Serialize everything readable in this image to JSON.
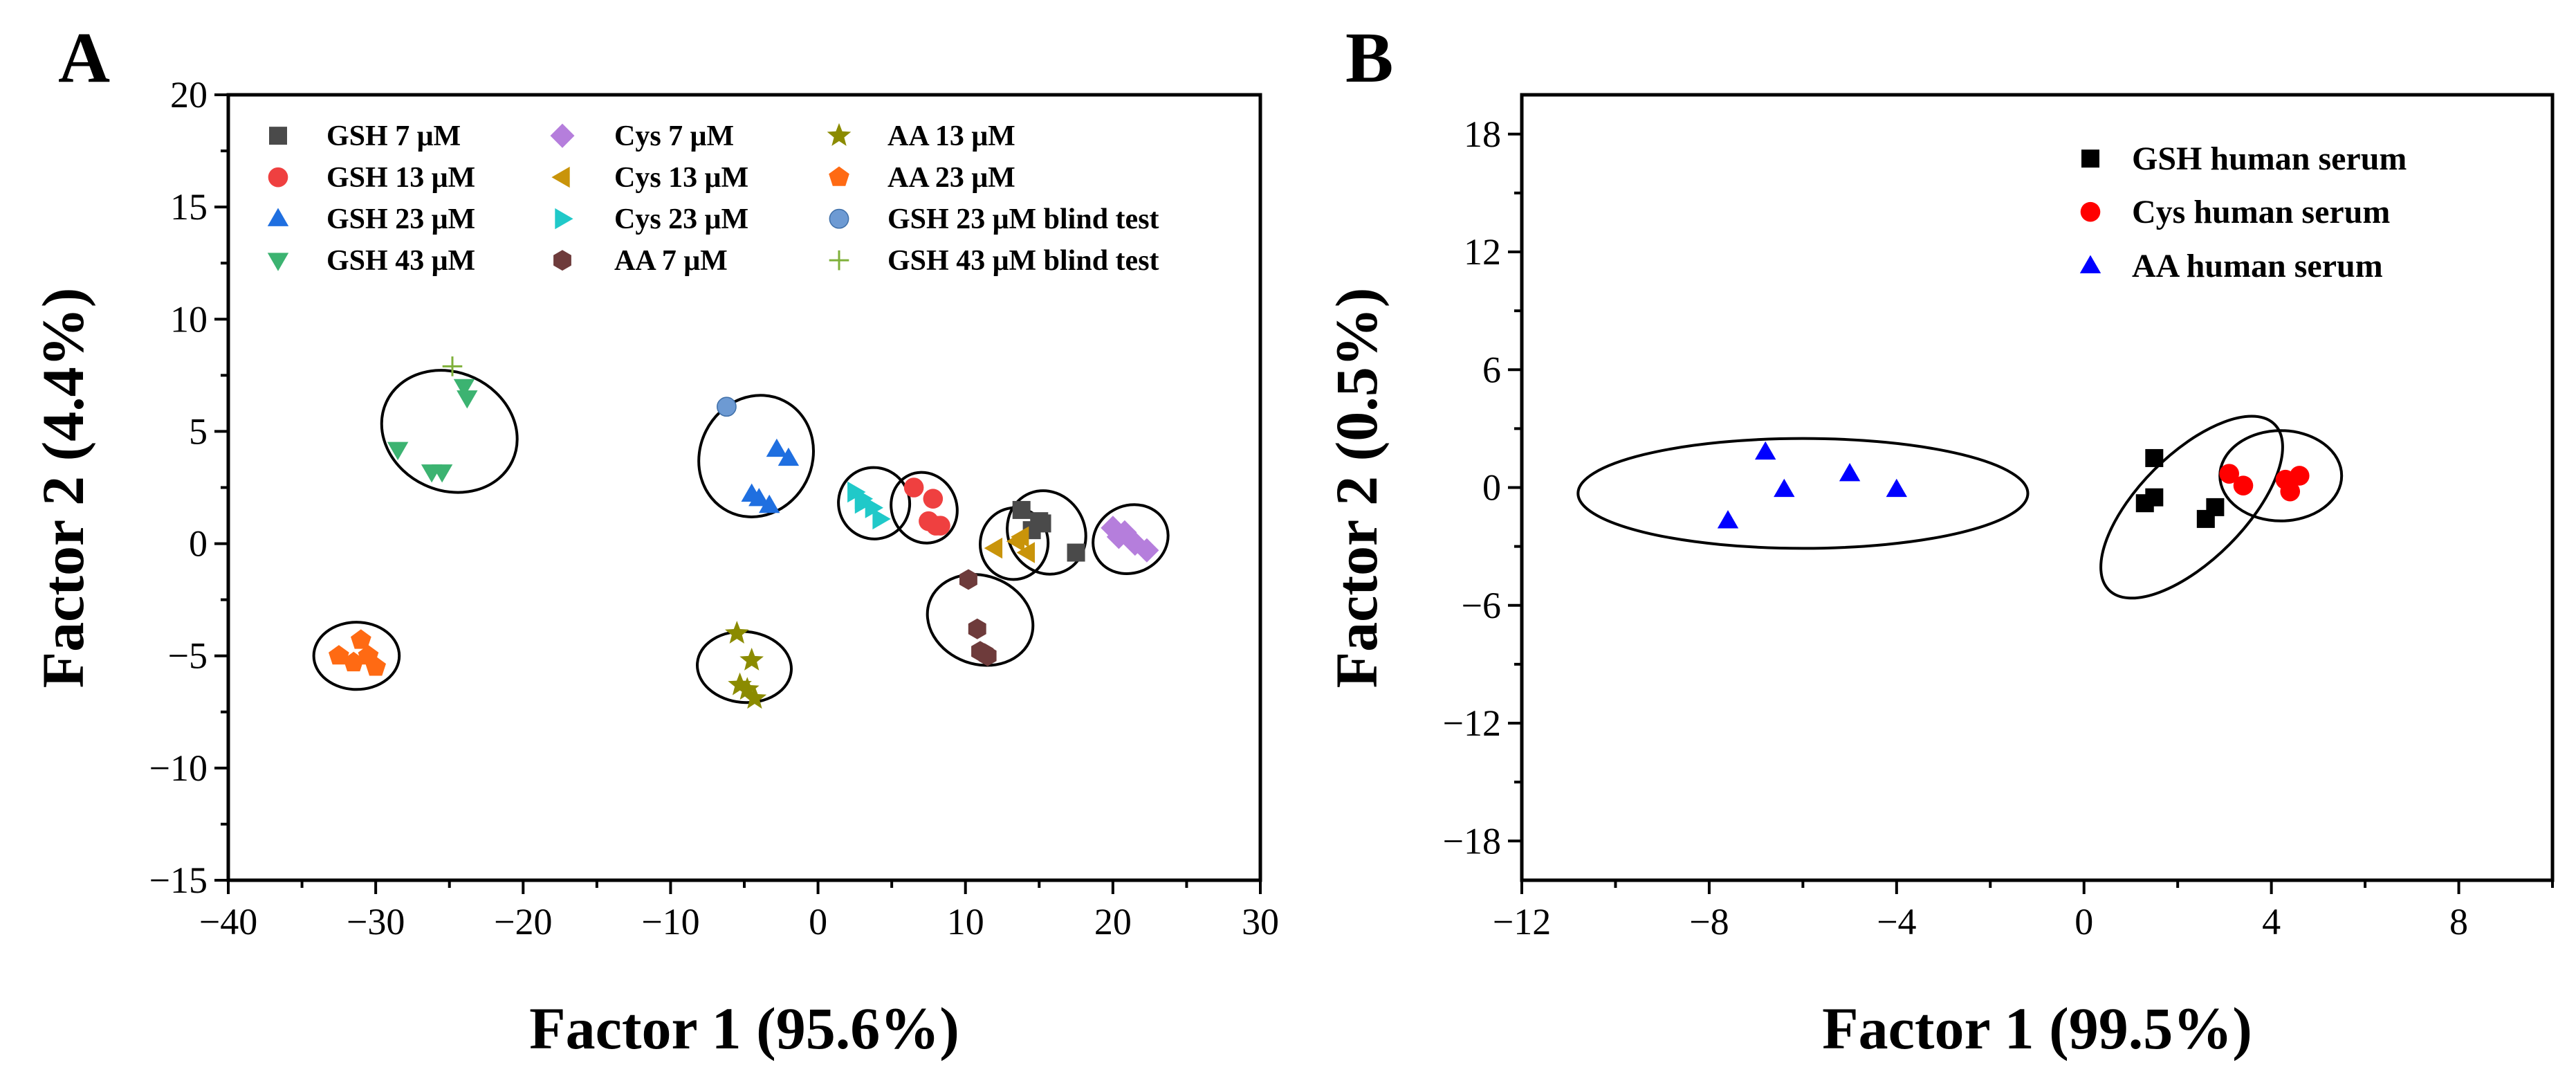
{
  "chart_data": [
    {
      "panel_label": "A",
      "type": "scatter",
      "xlabel": "Factor 1 (95.6%)",
      "ylabel": "Factor 2 (4.4%)",
      "xlim": [
        -40,
        30
      ],
      "ylim": [
        -15,
        20
      ],
      "xticks": [
        -40,
        -30,
        -20,
        -10,
        0,
        10,
        20,
        30
      ],
      "yticks": [
        -15,
        -10,
        -5,
        0,
        5,
        10,
        15,
        20
      ],
      "xtick_labels": [
        "−40",
        "−30",
        "−20",
        "−10",
        "0",
        "10",
        "20",
        "30"
      ],
      "ytick_labels": [
        "−15",
        "−10",
        "−5",
        "0",
        "5",
        "10",
        "15",
        "20"
      ],
      "grid": false,
      "legend_position": "top",
      "series": [
        {
          "name": "GSH 7 μM",
          "marker": "square",
          "color": "#4a4a4a",
          "points": [
            [
              13.8,
              1.5
            ],
            [
              15.0,
              1.0
            ],
            [
              15.2,
              0.9
            ],
            [
              14.5,
              0.6
            ],
            [
              17.5,
              -0.4
            ]
          ]
        },
        {
          "name": "GSH 13 μM",
          "marker": "circle",
          "color": "#ef4040",
          "points": [
            [
              6.5,
              2.5
            ],
            [
              7.8,
              2.0
            ],
            [
              7.5,
              1.0
            ],
            [
              8.0,
              0.8
            ],
            [
              8.3,
              0.8
            ]
          ]
        },
        {
          "name": "GSH 23 μM",
          "marker": "triangle-up",
          "color": "#1f6fe0",
          "points": [
            [
              -2.8,
              4.2
            ],
            [
              -2.0,
              3.8
            ],
            [
              -4.5,
              2.2
            ],
            [
              -4.0,
              2.0
            ],
            [
              -3.3,
              1.7
            ]
          ]
        },
        {
          "name": "GSH 43 μM",
          "marker": "triangle-down",
          "color": "#3cb371",
          "points": [
            [
              -24.0,
              7.0
            ],
            [
              -23.8,
              6.5
            ],
            [
              -28.5,
              4.2
            ],
            [
              -26.2,
              3.2
            ],
            [
              -25.5,
              3.2
            ]
          ]
        },
        {
          "name": "Cys 7 μM",
          "marker": "diamond",
          "color": "#b57edc",
          "points": [
            [
              20.0,
              0.7
            ],
            [
              20.8,
              0.5
            ],
            [
              21.5,
              0.0
            ],
            [
              22.3,
              -0.3
            ],
            [
              20.4,
              0.3
            ]
          ]
        },
        {
          "name": "Cys 13 μM",
          "marker": "triangle-left",
          "color": "#c9940a",
          "points": [
            [
              12.0,
              -0.2
            ],
            [
              13.5,
              0.1
            ],
            [
              14.2,
              -0.4
            ],
            [
              13.8,
              0.3
            ]
          ]
        },
        {
          "name": "Cys 23 μM",
          "marker": "triangle-right",
          "color": "#20c9c9",
          "points": [
            [
              2.5,
              2.3
            ],
            [
              3.0,
              2.0
            ],
            [
              3.7,
              1.6
            ],
            [
              4.2,
              1.1
            ],
            [
              3.0,
              1.8
            ]
          ]
        },
        {
          "name": "AA 7 μM",
          "marker": "hexagon",
          "color": "#6e3b3b",
          "points": [
            [
              10.2,
              -1.6
            ],
            [
              10.8,
              -3.8
            ],
            [
              11.0,
              -4.8
            ],
            [
              11.5,
              -5.0
            ],
            [
              11.3,
              -4.9
            ]
          ]
        },
        {
          "name": "AA 13 μM",
          "marker": "star",
          "color": "#8b8b00",
          "points": [
            [
              -5.5,
              -4.0
            ],
            [
              -4.5,
              -5.2
            ],
            [
              -5.3,
              -6.3
            ],
            [
              -4.8,
              -6.5
            ],
            [
              -4.3,
              -6.9
            ]
          ]
        },
        {
          "name": "AA 23 μM",
          "marker": "pentagon",
          "color": "#ff6a13",
          "points": [
            [
              -31.0,
              -4.3
            ],
            [
              -32.5,
              -5.0
            ],
            [
              -30.5,
              -5.0
            ],
            [
              -31.5,
              -5.3
            ],
            [
              -30.0,
              -5.5
            ]
          ]
        },
        {
          "name": "GSH 23 μM blind test",
          "marker": "sphere",
          "color": "#6d9ad3",
          "points": [
            [
              -6.2,
              6.1
            ]
          ]
        },
        {
          "name": "GSH 43 μM blind test",
          "marker": "plus",
          "color": "#7fb03a",
          "points": [
            [
              -24.8,
              7.9
            ]
          ]
        }
      ],
      "cluster_ellipses": [
        {
          "cx": -25.0,
          "cy": 5.0,
          "rx": 4.0,
          "ry": 3.1,
          "rotation_deg": -65
        },
        {
          "cx": -4.2,
          "cy": 3.9,
          "rx": 4.2,
          "ry": 2.5,
          "rotation_deg": -63
        },
        {
          "cx": 3.8,
          "cy": 1.8,
          "rx": 2.4,
          "ry": 1.6,
          "rotation_deg": -40
        },
        {
          "cx": 7.2,
          "cy": 1.6,
          "rx": 2.2,
          "ry": 1.6,
          "rotation_deg": -25
        },
        {
          "cx": 13.3,
          "cy": 0.0,
          "rx": 2.3,
          "ry": 1.6,
          "rotation_deg": 10
        },
        {
          "cx": 15.5,
          "cy": 0.5,
          "rx": 2.6,
          "ry": 1.9,
          "rotation_deg": -28
        },
        {
          "cx": 21.2,
          "cy": 0.2,
          "rx": 2.6,
          "ry": 1.5,
          "rotation_deg": -25
        },
        {
          "cx": 11.0,
          "cy": -3.4,
          "rx": 3.0,
          "ry": 2.4,
          "rotation_deg": -70
        },
        {
          "cx": -5.0,
          "cy": -5.5,
          "rx": 2.4,
          "ry": 2.1,
          "rotation_deg": -85
        },
        {
          "cx": -31.3,
          "cy": -5.0,
          "rx": 2.9,
          "ry": 1.5,
          "rotation_deg": 0
        }
      ]
    },
    {
      "panel_label": "B",
      "type": "scatter",
      "xlabel": "Factor 1 (99.5%)",
      "ylabel": "Factor 2 (0.5%)",
      "xlim": [
        -12,
        10
      ],
      "ylim": [
        -20,
        20
      ],
      "xticks": [
        -12,
        -8,
        -4,
        0,
        4,
        8
      ],
      "yticks": [
        -18,
        -12,
        -6,
        0,
        6,
        12,
        18
      ],
      "xtick_labels": [
        "−12",
        "−8",
        "−4",
        "0",
        "4",
        "8"
      ],
      "ytick_labels": [
        "−18",
        "−12",
        "−6",
        "0",
        "6",
        "12",
        "18"
      ],
      "grid": false,
      "legend_position": "top-right",
      "series": [
        {
          "name": "GSH human serum",
          "marker": "square",
          "color": "#000000",
          "points": [
            [
              1.5,
              1.5
            ],
            [
              1.5,
              -0.5
            ],
            [
              1.3,
              -0.8
            ],
            [
              2.8,
              -1.0
            ],
            [
              2.6,
              -1.6
            ]
          ]
        },
        {
          "name": "Cys human serum",
          "marker": "circle",
          "color": "#ff0000",
          "points": [
            [
              3.1,
              0.7
            ],
            [
              3.4,
              0.1
            ],
            [
              4.3,
              0.4
            ],
            [
              4.6,
              0.6
            ],
            [
              4.4,
              -0.2
            ]
          ]
        },
        {
          "name": "AA human serum",
          "marker": "triangle-up",
          "color": "#0000ff",
          "points": [
            [
              -6.8,
              1.8
            ],
            [
              -5.0,
              0.7
            ],
            [
              -6.4,
              -0.1
            ],
            [
              -4.0,
              -0.1
            ],
            [
              -7.6,
              -1.7
            ]
          ]
        }
      ],
      "cluster_ellipses": [
        {
          "cx": -6.0,
          "cy": -0.3,
          "rx": 4.8,
          "ry": 2.8,
          "rotation_deg": 0
        },
        {
          "cx": 2.3,
          "cy": -1.0,
          "rx": 2.5,
          "ry": 2.7,
          "rotation_deg": -45
        },
        {
          "cx": 4.2,
          "cy": 0.6,
          "rx": 1.3,
          "ry": 2.3,
          "rotation_deg": 0
        }
      ]
    }
  ]
}
